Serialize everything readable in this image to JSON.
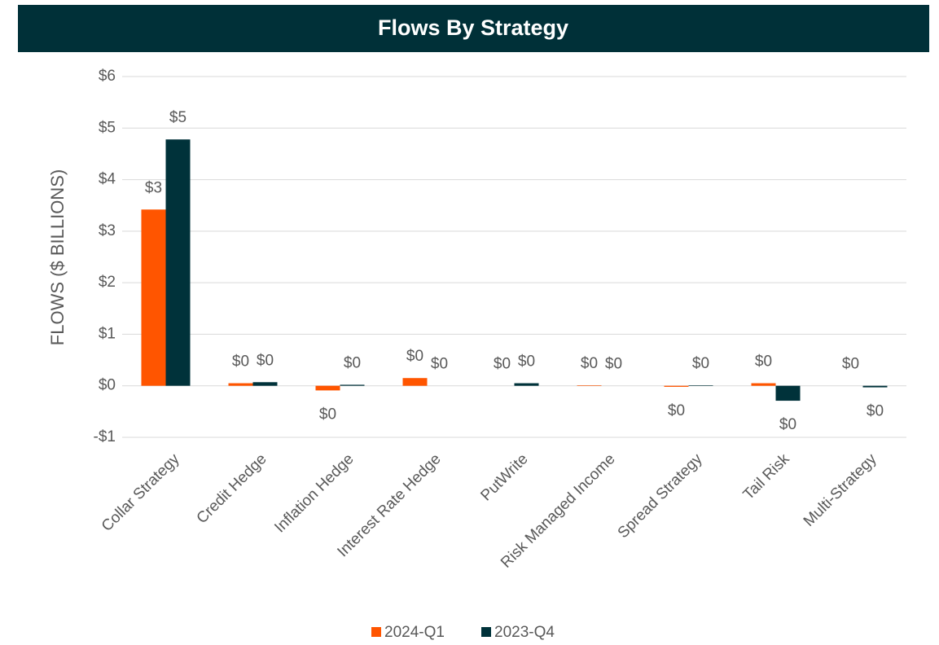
{
  "chart_data": {
    "type": "bar",
    "title": "Flows By Strategy",
    "y_label": "FLOWS ($ BILLIONS)",
    "categories": [
      "Collar Strategy",
      "Credit Hedge",
      "Inflation Hedge",
      "Interest Rate Hedge",
      "PutWrite",
      "Risk Managed Income",
      "Spread Strategy",
      "Tail Risk",
      "Multi-Strategy"
    ],
    "series": [
      {
        "name": "2024-Q1",
        "color": "#ff5500",
        "values": [
          3.42,
          0.05,
          -0.09,
          0.15,
          0.0,
          0.01,
          -0.02,
          0.05,
          0.0
        ],
        "value_labels": [
          "$3",
          "$0",
          "$0",
          "$0",
          "$0",
          "$0",
          "$0",
          "$0",
          "$0"
        ]
      },
      {
        "name": "2023-Q4",
        "color": "#00323a",
        "values": [
          4.78,
          0.07,
          0.02,
          0.0,
          0.05,
          0.0,
          0.01,
          -0.29,
          -0.03
        ],
        "value_labels": [
          "$5",
          "$0",
          "$0",
          "$0",
          "$0",
          "$0",
          "$0",
          "$0",
          "$0"
        ]
      }
    ],
    "ylim": [
      -1,
      6
    ],
    "yticks": [
      {
        "value": -1,
        "label": "-$1"
      },
      {
        "value": 0,
        "label": "$0"
      },
      {
        "value": 1,
        "label": "$1"
      },
      {
        "value": 2,
        "label": "$2"
      },
      {
        "value": 3,
        "label": "$3"
      },
      {
        "value": 4,
        "label": "$4"
      },
      {
        "value": 5,
        "label": "$5"
      },
      {
        "value": 6,
        "label": "$6"
      }
    ],
    "grid": true,
    "legend": "bottom"
  }
}
